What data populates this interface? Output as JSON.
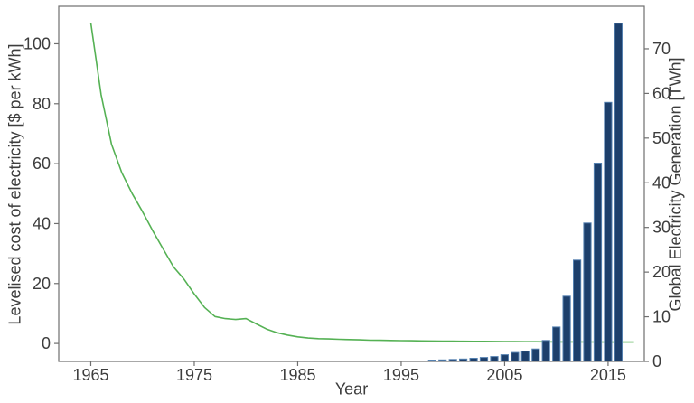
{
  "chart_data": {
    "type": "line+bar",
    "title": "",
    "xlabel": "Year",
    "ylabel_left": "Levelised cost of electricity [$ per kWh]",
    "ylabel_right": "Global Electricity Generation [TWh]",
    "xlim": [
      1961.9,
      2018.5
    ],
    "ylim_left": [
      -6,
      112.5
    ],
    "ylim_right": [
      0,
      79.5
    ],
    "xticks": [
      1965,
      1975,
      1985,
      1995,
      2005,
      2015
    ],
    "yticks_left": [
      0,
      20,
      40,
      60,
      80,
      100
    ],
    "yticks_right": [
      0,
      10,
      20,
      30,
      40,
      50,
      60,
      70
    ],
    "grid": false,
    "legend": "none",
    "line_series": {
      "name": "levelised-cost-of-electricity",
      "color": "#55b154",
      "width": 1.6,
      "x": [
        1965,
        1966,
        1967,
        1968,
        1969,
        1970,
        1971,
        1972,
        1973,
        1974,
        1975,
        1976,
        1977,
        1978,
        1979,
        1980,
        1981,
        1982,
        1983,
        1984,
        1985,
        1986,
        1987,
        1988,
        1989,
        1990,
        1991,
        1992,
        1993,
        1994,
        1995,
        1996,
        1997,
        1998,
        1999,
        2000,
        2001,
        2002,
        2003,
        2004,
        2005,
        2006,
        2007,
        2008,
        2009,
        2010,
        2011,
        2012,
        2013,
        2014,
        2015,
        2016,
        2017.5
      ],
      "y": [
        107,
        83,
        66.5,
        57,
        50,
        44,
        37.5,
        31.5,
        25.5,
        21.5,
        16.5,
        12,
        9,
        8.3,
        8,
        8.3,
        6.5,
        4.8,
        3.6,
        2.8,
        2.2,
        1.8,
        1.6,
        1.5,
        1.4,
        1.3,
        1.2,
        1.1,
        1.05,
        1,
        0.95,
        0.9,
        0.85,
        0.8,
        0.78,
        0.75,
        0.72,
        0.7,
        0.68,
        0.65,
        0.62,
        0.6,
        0.58,
        0.56,
        0.54,
        0.52,
        0.5,
        0.5,
        0.48,
        0.47,
        0.46,
        0.45,
        0.45
      ]
    },
    "bar_series": {
      "name": "global-electricity-generation",
      "fill": "#1d3f6b",
      "edge": "#5581b0",
      "bar_width_years": 0.72,
      "x": [
        1998,
        1999,
        2000,
        2001,
        2002,
        2003,
        2004,
        2005,
        2006,
        2007,
        2008,
        2009,
        2010,
        2011,
        2012,
        2013,
        2014,
        2015,
        2016
      ],
      "y": [
        0.3,
        0.35,
        0.45,
        0.55,
        0.7,
        0.9,
        1.1,
        1.5,
        2.0,
        2.3,
        2.8,
        4.7,
        7.7,
        14.6,
        22.7,
        31.0,
        44.4,
        58.0,
        75.7
      ]
    },
    "colors": {
      "spine": "#6f6f6f",
      "tick_text": "#3d3d3d",
      "background": "#ffffff"
    }
  }
}
